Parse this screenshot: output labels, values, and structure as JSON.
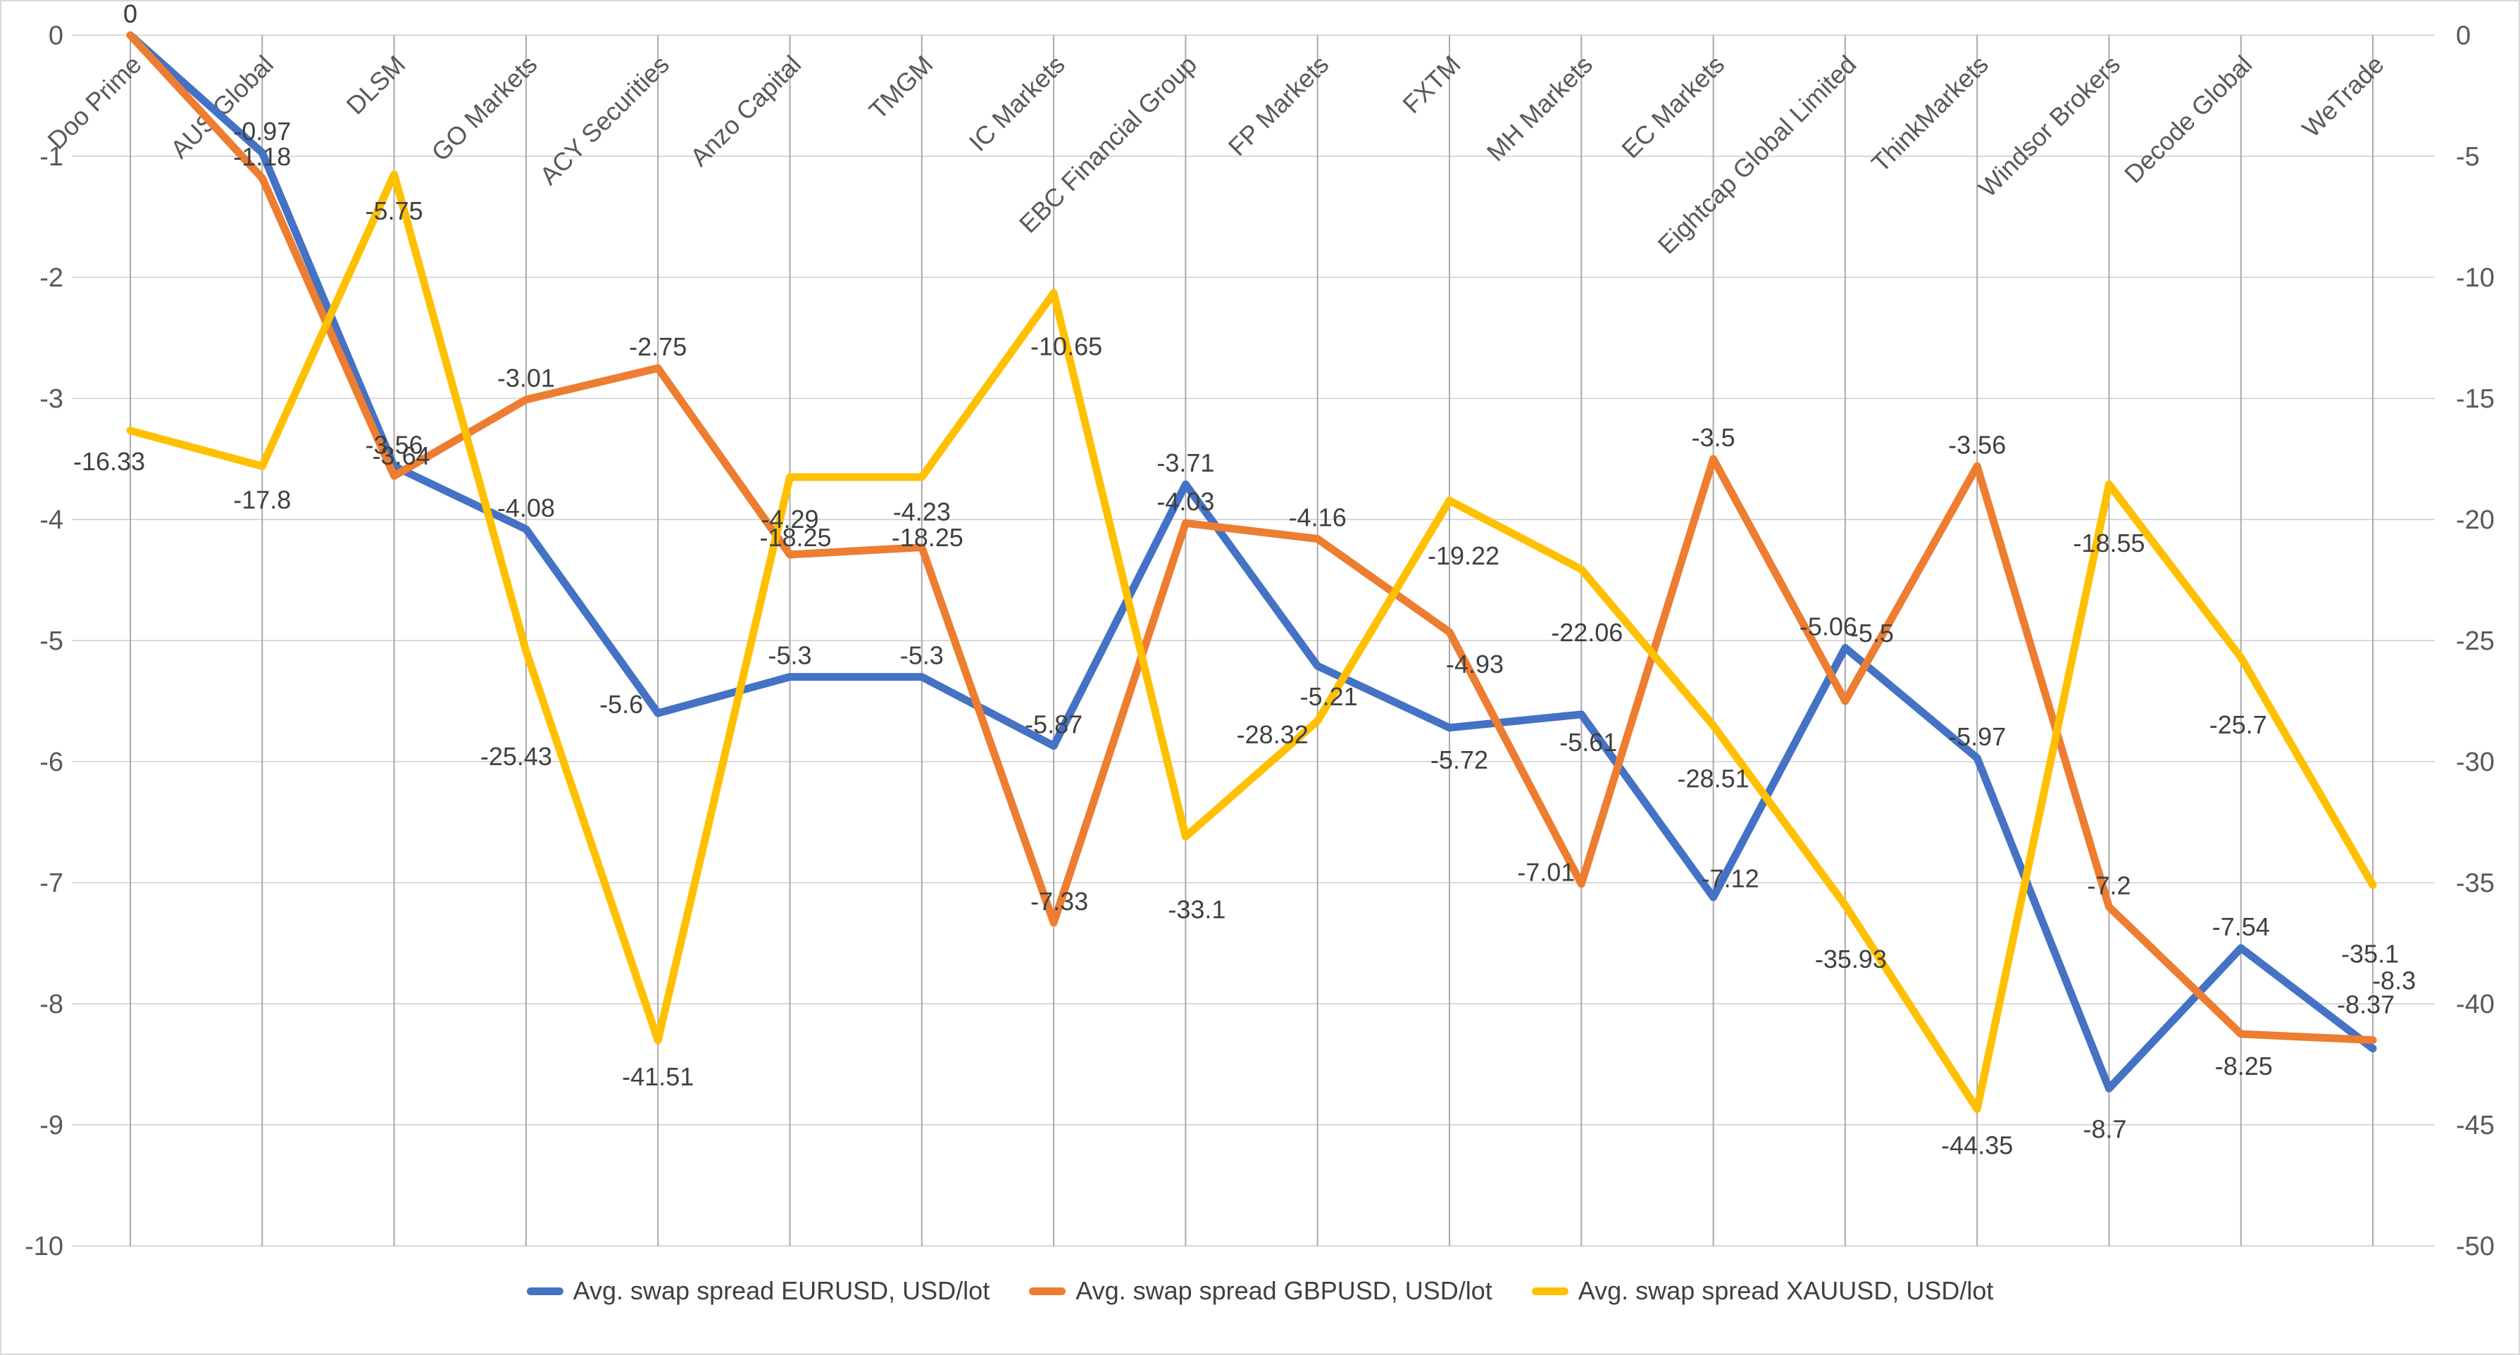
{
  "chart_data": {
    "type": "line",
    "categories": [
      "Doo Prime",
      "AUS Global",
      "DLSM",
      "GO Markets",
      "ACY Securities",
      "Anzo Capital",
      "TMGM",
      "IC Markets",
      "EBC Financial Group",
      "FP Markets",
      "FXTM",
      "MH Markets",
      "EC Markets",
      "Eightcap Global Limited",
      "ThinkMarkets",
      "Windsor Brokers",
      "Decode Global",
      "WeTrade"
    ],
    "series": [
      {
        "name": "Avg. swap spread EURUSD, USD/lot",
        "color": "#4472C4",
        "axis": "left",
        "values": [
          0,
          -0.97,
          -3.56,
          -4.08,
          -5.6,
          -5.3,
          -5.3,
          -5.87,
          -3.71,
          -5.21,
          -5.72,
          -5.61,
          -7.12,
          -5.06,
          -5.97,
          -8.7,
          -7.54,
          -8.37
        ]
      },
      {
        "name": "Avg. swap spread GBPUSD, USD/lot",
        "color": "#ED7D31",
        "axis": "left",
        "values": [
          0,
          -1.18,
          -3.64,
          -3.01,
          -2.75,
          -4.29,
          -4.23,
          -7.33,
          -4.03,
          -4.16,
          -4.93,
          -7.01,
          -3.5,
          -5.5,
          -3.56,
          -7.2,
          -8.25,
          -8.3
        ]
      },
      {
        "name": "Avg. swap spread XAUUSD, USD/lot",
        "color": "#FFC000",
        "axis": "right",
        "values": [
          -16.33,
          -17.8,
          -5.75,
          -25.43,
          -41.51,
          -18.25,
          -18.25,
          -10.65,
          -33.1,
          -28.32,
          -19.22,
          -22.06,
          -28.51,
          -35.93,
          -44.35,
          -18.55,
          -25.7,
          -35.1
        ]
      }
    ],
    "left_axis": {
      "min": -10,
      "max": 0,
      "tick_labels": [
        "0",
        "-1",
        "-2",
        "-3",
        "-4",
        "-5",
        "-6",
        "-7",
        "-8",
        "-9",
        "-10"
      ]
    },
    "right_axis": {
      "min": -50,
      "max": 0,
      "tick_labels": [
        "0",
        "-5",
        "-10",
        "-15",
        "-20",
        "-25",
        "-30",
        "-35",
        "-40",
        "-45",
        "-50"
      ]
    },
    "grid": true,
    "legend_position": "bottom",
    "title": "",
    "xlabel": "",
    "ylabel": ""
  }
}
